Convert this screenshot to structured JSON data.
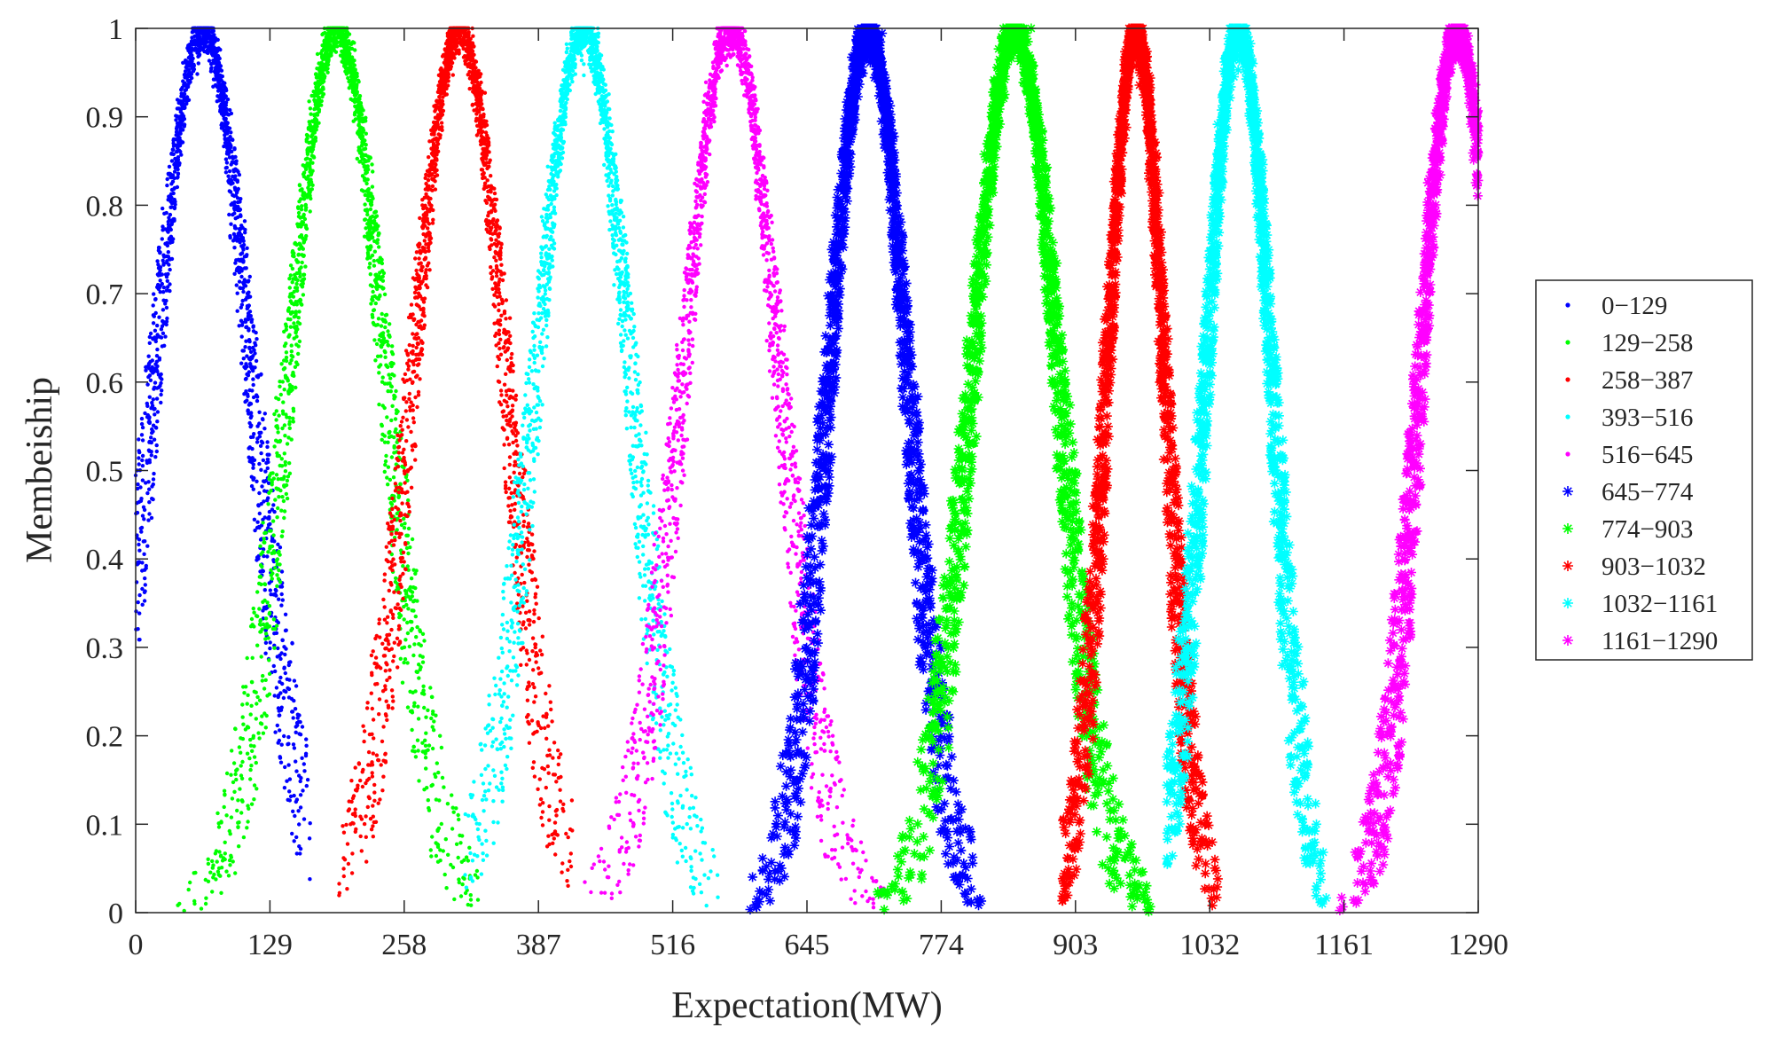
{
  "chart_data": {
    "type": "scatter",
    "title": "",
    "xlabel": "Expectation(MW)",
    "ylabel": "Membeiship",
    "xlim": [
      0,
      1290
    ],
    "ylim": [
      0,
      1
    ],
    "grid": false,
    "legend_position": "outside-right",
    "x_ticks": [
      "0",
      "129",
      "258",
      "387",
      "516",
      "645",
      "774",
      "903",
      "1032",
      "1161",
      "1290"
    ],
    "y_ticks": [
      "0",
      "0.1",
      "0.2",
      "0.3",
      "0.4",
      "0.5",
      "0.6",
      "0.7",
      "0.8",
      "0.9",
      "1"
    ],
    "series": [
      {
        "name": "0−129",
        "color": "#0000ff",
        "marker": "dot",
        "peak": 64.5,
        "spread": 47,
        "xmin": 0,
        "xmax": 170
      },
      {
        "name": "129−258",
        "color": "#00ff00",
        "marker": "dot",
        "peak": 193.5,
        "spread": 47,
        "xmin": 40,
        "xmax": 330
      },
      {
        "name": "258−387",
        "color": "#ff0000",
        "marker": "dot",
        "peak": 311,
        "spread": 45,
        "xmin": 195,
        "xmax": 420
      },
      {
        "name": "393−516",
        "color": "#00ffff",
        "marker": "dot",
        "peak": 430,
        "spread": 46,
        "xmin": 315,
        "xmax": 560
      },
      {
        "name": "516−645",
        "color": "#ff00ff",
        "marker": "dot",
        "peak": 572,
        "spread": 47,
        "xmin": 430,
        "xmax": 720
      },
      {
        "name": "645−774",
        "color": "#0000ff",
        "marker": "star",
        "peak": 704,
        "spread": 38,
        "xmin": 590,
        "xmax": 815
      },
      {
        "name": "774−903",
        "color": "#00ff00",
        "marker": "star",
        "peak": 845,
        "spread": 42,
        "xmin": 705,
        "xmax": 980
      },
      {
        "name": "903−1032",
        "color": "#ff0000",
        "marker": "star",
        "peak": 961,
        "spread": 28,
        "xmin": 890,
        "xmax": 1040
      },
      {
        "name": "1032−1161",
        "color": "#00ffff",
        "marker": "star",
        "peak": 1060,
        "spread": 32,
        "xmin": 990,
        "xmax": 1145
      },
      {
        "name": "1161−1290",
        "color": "#ff00ff",
        "marker": "star",
        "peak": 1270,
        "spread": 36,
        "xmin": 1150,
        "xmax": 1290
      }
    ]
  }
}
